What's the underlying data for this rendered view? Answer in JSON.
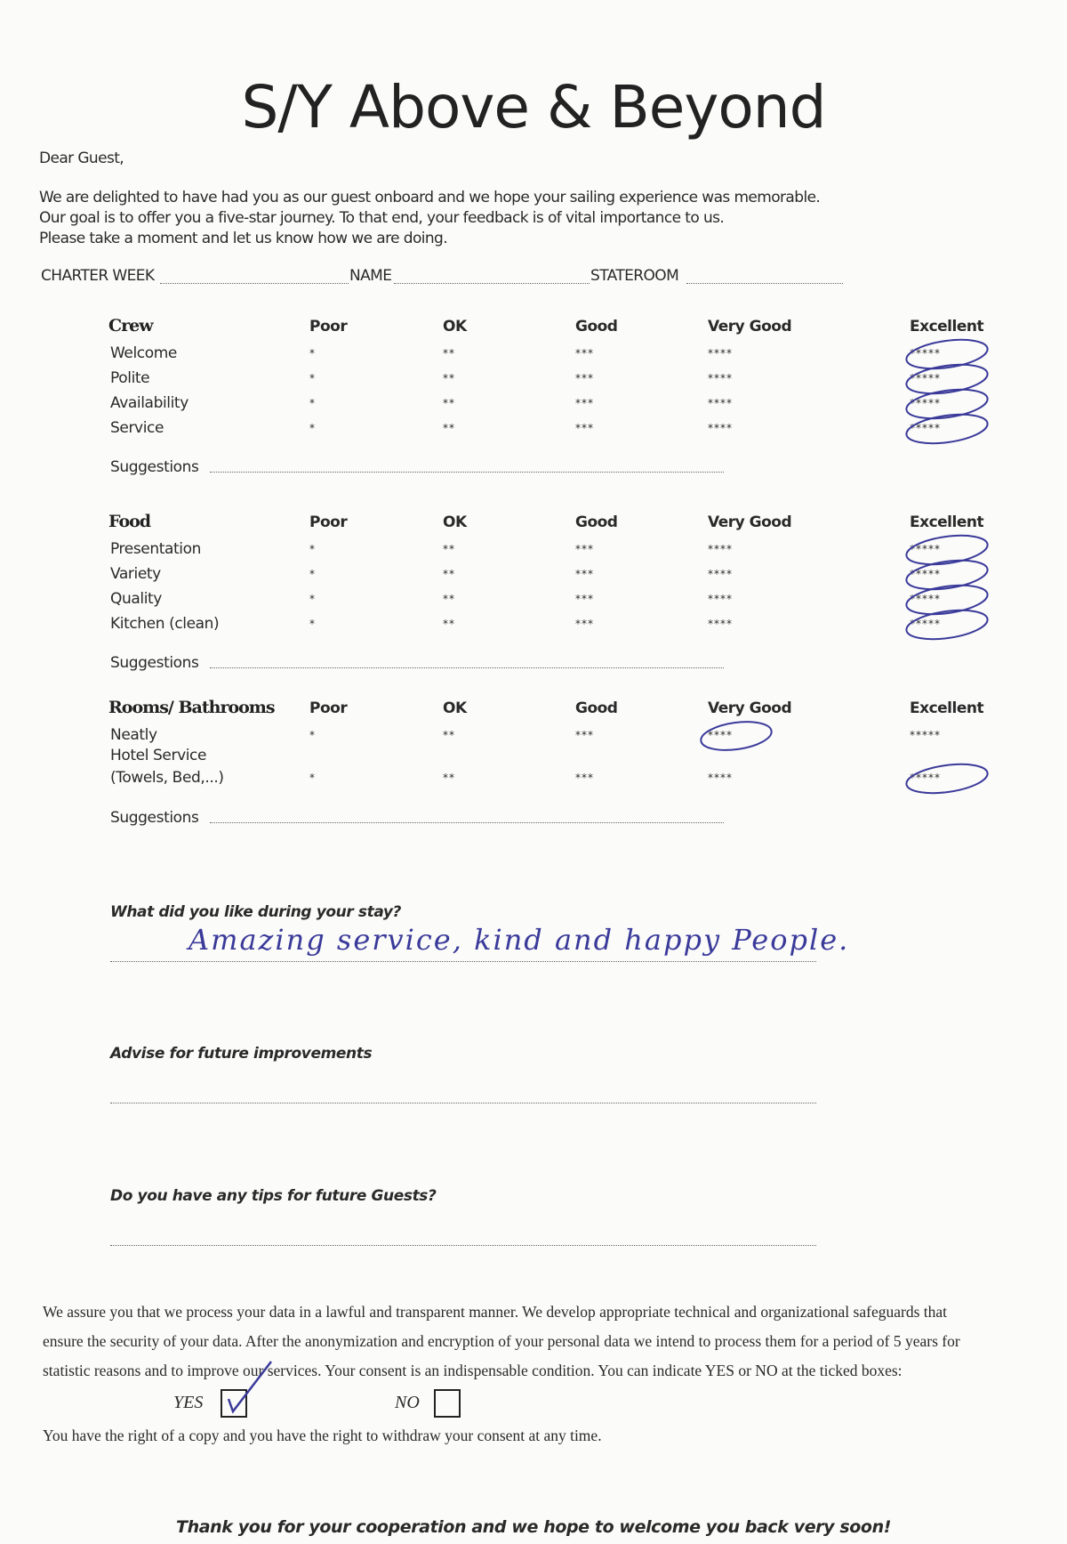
{
  "title": "S/Y Above & Beyond",
  "greeting": "Dear Guest,",
  "intro": [
    "We are delighted to have had you as our guest onboard and we hope your sailing experience was memorable.",
    "Our goal is to offer you a five-star journey. To that end, your feedback is of vital importance to us.",
    "Please take a moment and let us know how we are doing."
  ],
  "fields": {
    "charter_week": "CHARTER WEEK",
    "name": "NAME",
    "stateroom": "STATEROOM"
  },
  "columns": [
    "Poor",
    "OK",
    "Good",
    "Very Good",
    "Excellent"
  ],
  "stars": [
    "*",
    "**",
    "***",
    "****",
    "*****"
  ],
  "suggestions_label": "Suggestions",
  "sections": [
    {
      "title": "Crew",
      "items": [
        {
          "label": "Welcome",
          "rating": 5
        },
        {
          "label": "Polite",
          "rating": 5
        },
        {
          "label": "Availability",
          "rating": 5
        },
        {
          "label": "Service",
          "rating": 5
        }
      ]
    },
    {
      "title": "Food",
      "items": [
        {
          "label": "Presentation",
          "rating": 5
        },
        {
          "label": "Variety",
          "rating": 5
        },
        {
          "label": "Quality",
          "rating": 5
        },
        {
          "label": "Kitchen (clean)",
          "rating": 5
        }
      ]
    },
    {
      "title": "Rooms/ Bathrooms",
      "items": [
        {
          "label": "Neatly",
          "rating": 4
        },
        {
          "label": "Hotel Service",
          "label2": "(Towels, Bed,...)",
          "rating": 5
        }
      ]
    }
  ],
  "questions": [
    {
      "q": "What did you like during your stay?",
      "answer": "Amazing service, kind and happy People."
    },
    {
      "q": "Advise for future improvements",
      "answer": ""
    },
    {
      "q": "Do you have any tips for future Guests?",
      "answer": ""
    }
  ],
  "privacy": {
    "lines": [
      "We assure you that we process your data in a lawful and transparent manner. We develop appropriate technical and organizational safeguards that",
      "ensure the security of your data. After the anonymization and encryption of your personal data we intend to process them for a period of 5 years for",
      "statistic reasons and to improve our services. Your consent is an indispensable condition. You can indicate YES or NO at the ticked boxes:"
    ],
    "yes_label": "YES",
    "no_label": "NO",
    "yes_checked": true,
    "no_checked": false,
    "rights": "You have the right of a copy and you have the right to withdraw your consent at any time."
  },
  "closing": "Thank you for your cooperation and we hope to welcome you back very soon!",
  "ink_color": "#3a3a9a"
}
